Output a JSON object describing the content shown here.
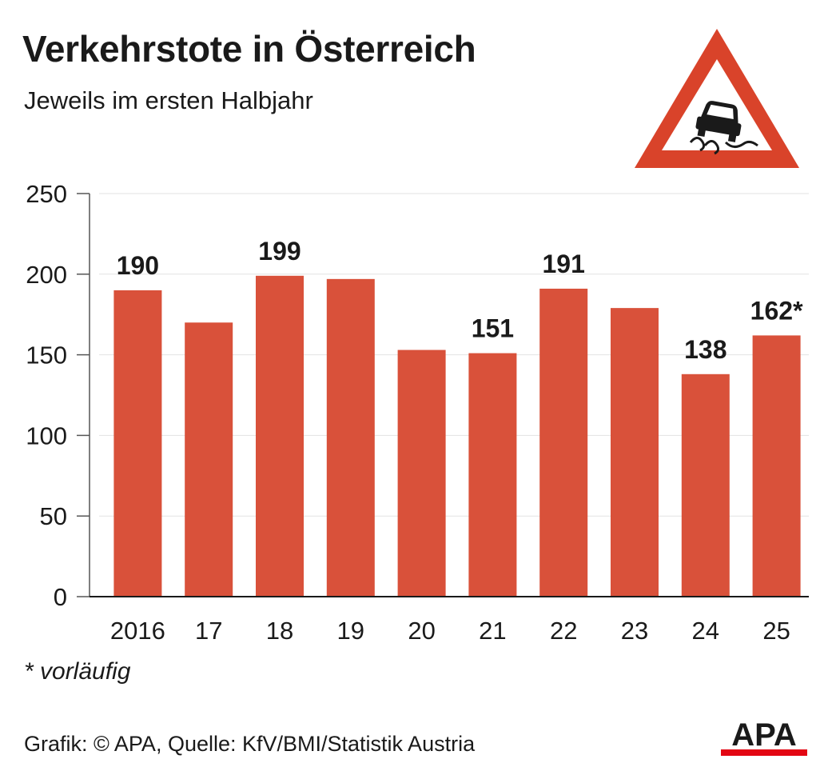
{
  "header": {
    "title": "Verkehrstote in Österreich",
    "subtitle": "Jeweils im ersten Halbjahr"
  },
  "icon": {
    "name": "slippery-road-warning-icon",
    "border_color": "#d9432a"
  },
  "chart_data": {
    "type": "bar",
    "categories": [
      "2016",
      "17",
      "18",
      "19",
      "20",
      "21",
      "22",
      "23",
      "24",
      "25"
    ],
    "values": [
      190,
      170,
      199,
      197,
      153,
      151,
      191,
      179,
      138,
      162
    ],
    "data_labels": [
      "190",
      "",
      "199",
      "",
      "",
      "151",
      "191",
      "",
      "138",
      "162*"
    ],
    "yticks": [
      "0",
      "50",
      "100",
      "150",
      "200",
      "250"
    ],
    "ylim": [
      0,
      250
    ],
    "bar_color": "#d9513a",
    "grid": true
  },
  "footnote": "* vorläufig",
  "source": "Grafik: © APA, Quelle: KfV/BMI/Statistik Austria",
  "logo": {
    "text": "APA",
    "accent": "#e30613"
  }
}
